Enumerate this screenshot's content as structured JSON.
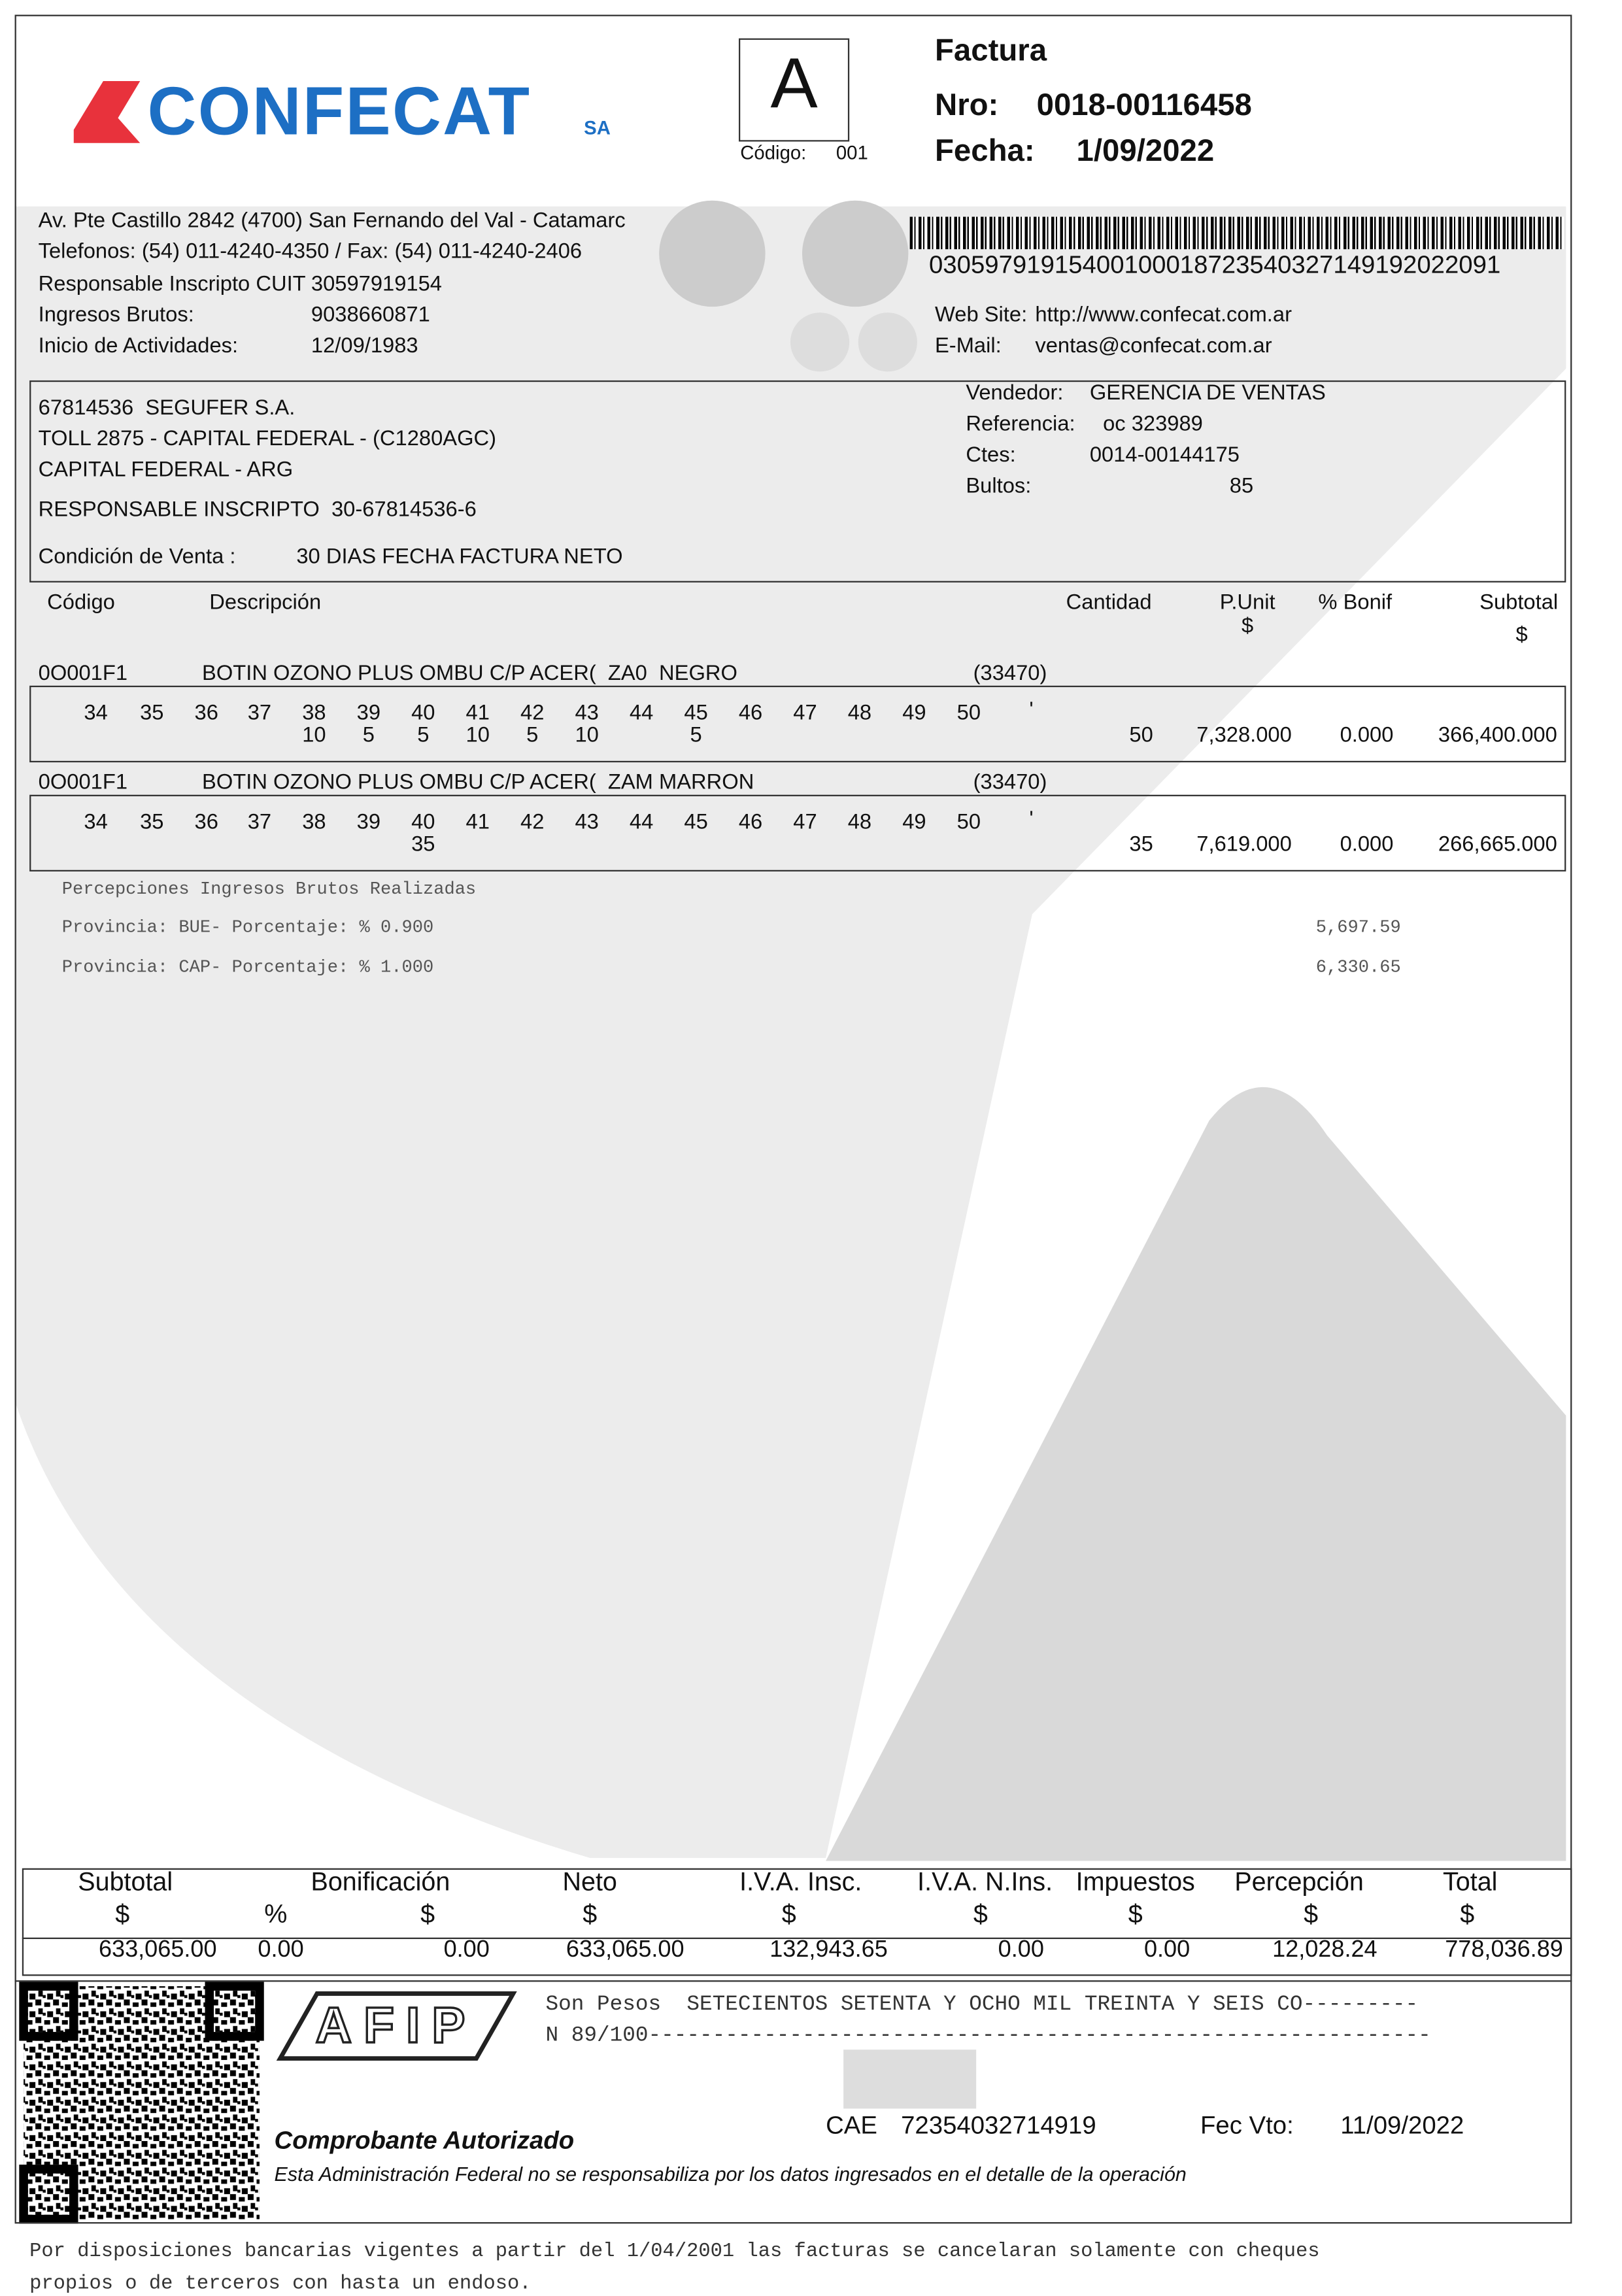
{
  "header": {
    "logo": "CONFECAT",
    "logo_suffix": "SA",
    "letter": "A",
    "codigo_label": "Código:",
    "codigo": "001",
    "doc_type": "Factura",
    "nro_label": "Nro:",
    "nro": "0018-00116458",
    "fecha_label": "Fecha:",
    "fecha": "1/09/2022"
  },
  "company": {
    "address": "Av. Pte Castillo 2842 (4700) San Fernando del Val - Catamarc",
    "phones": "Telefonos: (54) 011-4240-4350 / Fax: (54) 011-4240-2406",
    "rows": [
      [
        "Responsable Inscripto CUIT",
        "30597919154"
      ],
      [
        "Ingresos Brutos:",
        "9038660871"
      ],
      [
        "Inicio de Actividades:",
        "12/09/1983"
      ]
    ],
    "barcode_number": "03059791915400100018723540327149192022091",
    "web_label": "Web Site:",
    "web": "http://www.confecat.com.ar",
    "email_label": "E-Mail:",
    "email": "ventas@confecat.com.ar"
  },
  "client": {
    "lines": [
      "67814536  SEGUFER S.A.",
      "TOLL 2875 - CAPITAL FEDERAL - (C1280AGC)",
      "CAPITAL FEDERAL - ARG",
      "RESPONSABLE INSCRIPTO  30-67814536-6"
    ],
    "condicion_label": "Condición de Venta :",
    "condicion": "30 DIAS FECHA FACTURA NETO",
    "fields": [
      [
        "Vendedor:",
        "GERENCIA DE VENTAS"
      ],
      [
        "Referencia:",
        "oc 323989"
      ],
      [
        "Ctes:",
        "0014-00144175"
      ],
      [
        "Bultos:",
        "85"
      ]
    ]
  },
  "items": {
    "headers": [
      {
        "label": "Código"
      },
      {
        "label": "Descripción"
      },
      {
        "label": "Cantidad"
      },
      {
        "label": "P.Unit",
        "unit": "$"
      },
      {
        "label": "% Bonif"
      },
      {
        "label": "Subtotal",
        "unit": "$"
      }
    ],
    "sizes": [
      34,
      35,
      36,
      37,
      38,
      39,
      40,
      41,
      42,
      43,
      44,
      45,
      46,
      47,
      48,
      49,
      50
    ],
    "size_mark": "'",
    "rows": [
      {
        "code": "0O001F1",
        "description": "BOTIN OZONO PLUS OMBU C/P ACER(  ZA0  NEGRO",
        "ref": "(33470)",
        "size_qty": [
          null,
          null,
          null,
          null,
          10,
          5,
          5,
          10,
          5,
          10,
          null,
          5,
          null,
          null,
          null,
          null,
          null
        ],
        "cantidad": 50,
        "punit": "7,328.000",
        "bonif": "0.000",
        "subtotal": "366,400.000"
      },
      {
        "code": "0O001F1",
        "description": "BOTIN OZONO PLUS OMBU C/P ACER(  ZAM MARRON",
        "ref": "(33470)",
        "size_qty": [
          null,
          null,
          null,
          null,
          null,
          null,
          35,
          null,
          null,
          null,
          null,
          null,
          null,
          null,
          null,
          null,
          null
        ],
        "cantidad": 35,
        "punit": "7,619.000",
        "bonif": "0.000",
        "subtotal": "266,665.000"
      }
    ]
  },
  "perceptions": {
    "title": "Percepciones Ingresos Brutos Realizadas",
    "rows": [
      [
        "Provincia: BUE- Porcentaje: % 0.900",
        "5,697.59"
      ],
      [
        "Provincia: CAP- Porcentaje: % 1.000",
        "6,330.65"
      ]
    ]
  },
  "totals": {
    "headers": [
      {
        "label": "Subtotal",
        "unit": "$"
      },
      {
        "label": "Bonificación"
      },
      {
        "label": "Neto",
        "unit": "$"
      },
      {
        "label": "I.V.A. Insc.",
        "unit": "$"
      },
      {
        "label": "I.V.A. N.Ins.",
        "unit": "$"
      },
      {
        "label": "Impuestos",
        "unit": "$"
      },
      {
        "label": "Percepción",
        "unit": "$"
      },
      {
        "label": "Total",
        "unit": "$"
      }
    ],
    "bonif_units": [
      "%",
      "$"
    ],
    "values": [
      "633,065.00",
      "0.00",
      "0.00",
      "633,065.00",
      "132,943.65",
      "0.00",
      "0.00",
      "12,028.24",
      "778,036.89"
    ]
  },
  "footer": {
    "son_pesos": "Son Pesos  SETECIENTOS SETENTA Y OCHO MIL TREINTA Y SEIS CO---------",
    "son_pesos_2": "N 89/100-------------------------------------------------------------",
    "afip": "AFIP",
    "autorizado": "Comprobante Autorizado",
    "cae_label": "CAE",
    "cae": "72354032714919",
    "vto_label": "Fec Vto:",
    "vto": "11/09/2022",
    "disclaimer": "Esta Administración Federal no se responsabiliza por los datos ingresados en el detalle de la operación",
    "note": [
      "Por disposiciones bancarias vigentes a partir del 1/04/2001 las facturas se cancelaran solamente con cheques",
      "propios o de terceros con hasta un endoso."
    ]
  }
}
